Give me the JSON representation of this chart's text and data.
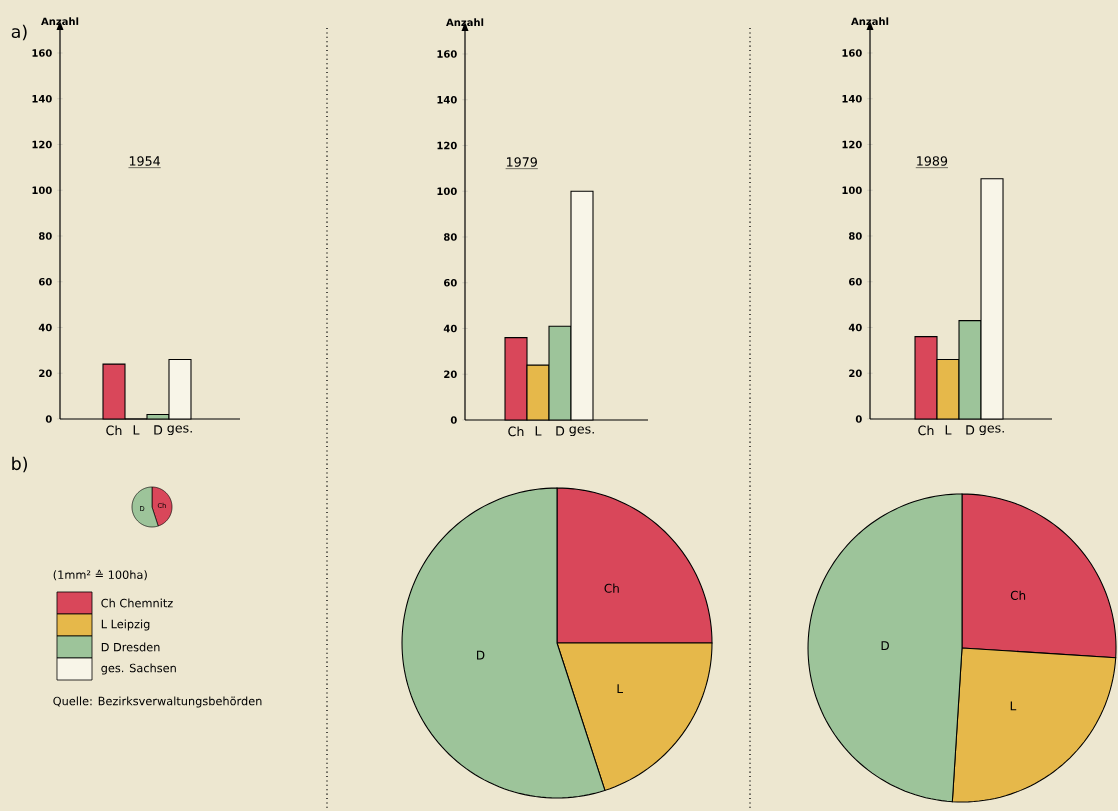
{
  "chart_data": [
    {
      "type": "bar",
      "title": "1954",
      "ylabel": "Anzahl",
      "categories": [
        "Ch",
        "L",
        "D",
        "ges."
      ],
      "values": [
        24,
        0,
        2,
        26
      ],
      "colors": [
        "#d9475a",
        "#e6b84a",
        "#9dc49a",
        "#f8f5e8"
      ],
      "ylim": [
        0,
        170
      ],
      "yticks": [
        0,
        20,
        40,
        60,
        80,
        100,
        120,
        140,
        160
      ],
      "annotations": [
        "a)"
      ]
    },
    {
      "type": "bar",
      "title": "1979",
      "ylabel": "Anzahl",
      "categories": [
        "Ch",
        "L",
        "D",
        "ges."
      ],
      "values": [
        36,
        24,
        41,
        100
      ],
      "colors": [
        "#d9475a",
        "#e6b84a",
        "#9dc49a",
        "#f8f5e8"
      ],
      "ylim": [
        0,
        170
      ],
      "yticks": [
        0,
        20,
        40,
        60,
        80,
        100,
        120,
        140,
        160
      ]
    },
    {
      "type": "bar",
      "title": "1989",
      "ylabel": "Anzahl",
      "categories": [
        "Ch",
        "L",
        "D",
        "ges."
      ],
      "values": [
        36,
        26,
        43,
        105
      ],
      "colors": [
        "#d9475a",
        "#e6b84a",
        "#9dc49a",
        "#f8f5e8"
      ],
      "ylim": [
        0,
        170
      ],
      "yticks": [
        0,
        20,
        40,
        60,
        80,
        100,
        120,
        140,
        160
      ]
    },
    {
      "type": "pie",
      "categories": [
        "Ch",
        "D"
      ],
      "values": [
        45,
        55
      ],
      "colors": [
        "#d9475a",
        "#9dc49a"
      ],
      "annotations": [
        "b)",
        "(1mm² ≙ 100ha)",
        "Ch Chemnitz",
        "L Leipzig",
        "D Dresden",
        "ges. Sachsen",
        "Quelle: Bezirksverwaltungsbehörden"
      ]
    },
    {
      "type": "pie",
      "categories": [
        "Ch",
        "L",
        "D"
      ],
      "values": [
        25,
        20,
        55
      ],
      "colors": [
        "#d9475a",
        "#e6b84a",
        "#9dc49a"
      ]
    },
    {
      "type": "pie",
      "categories": [
        "Ch",
        "L",
        "D"
      ],
      "values": [
        26,
        25,
        49
      ],
      "colors": [
        "#d9475a",
        "#e6b84a",
        "#9dc49a"
      ]
    }
  ]
}
